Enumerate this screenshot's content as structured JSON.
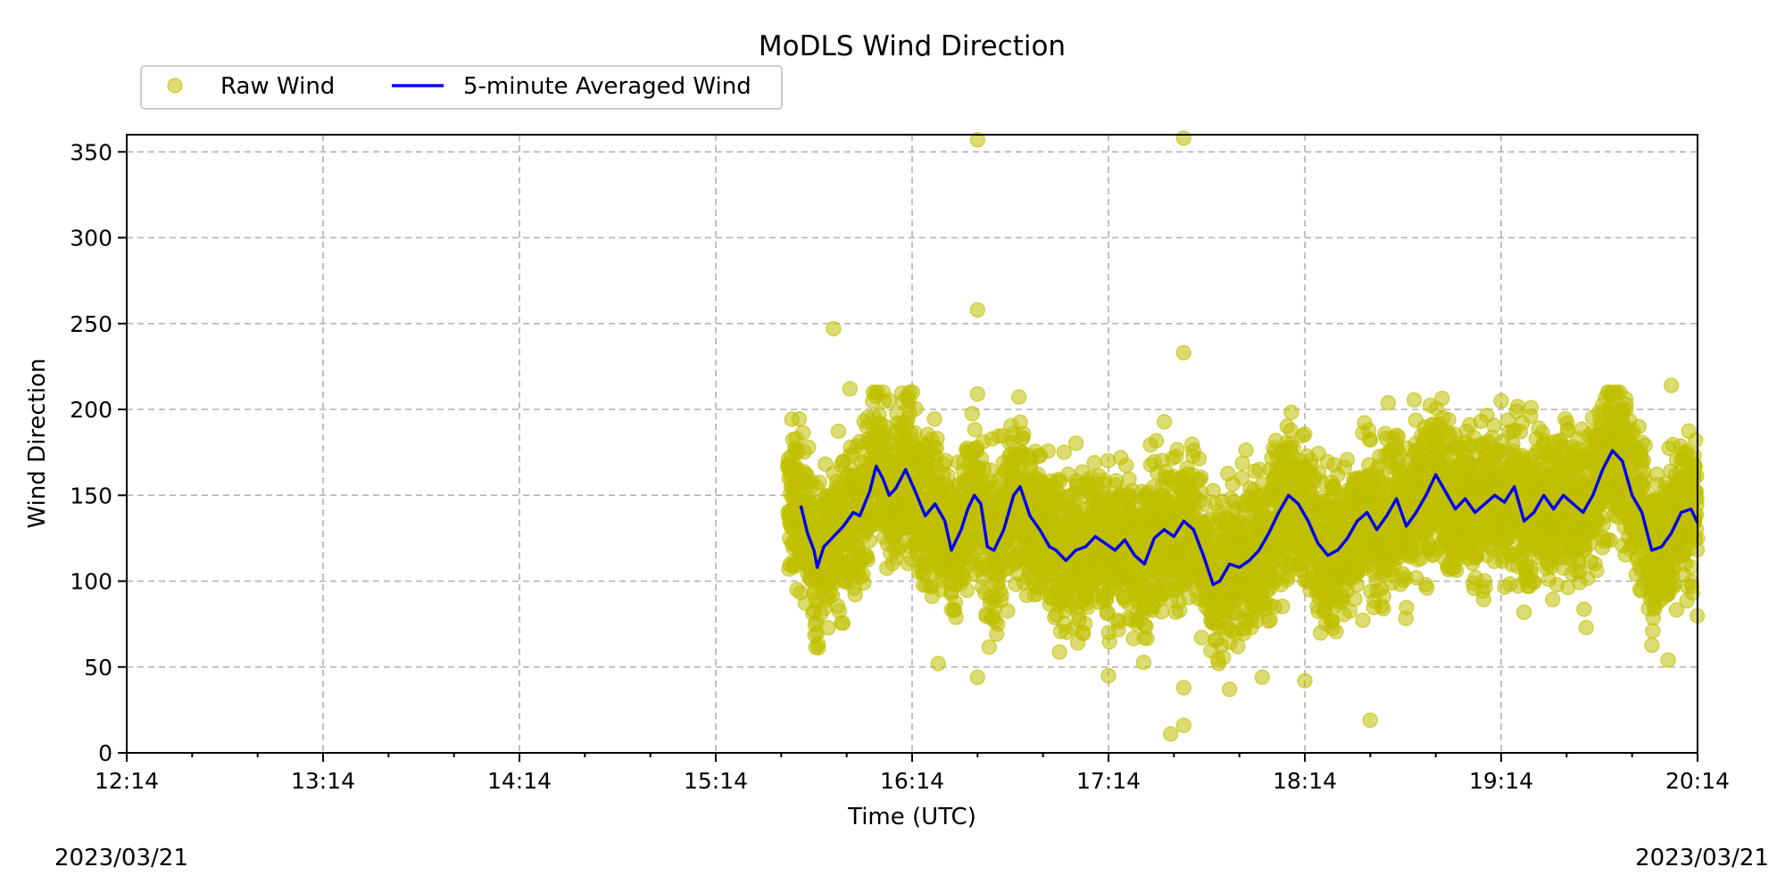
{
  "chart_data": {
    "type": "scatter",
    "title": "MoDLS Wind Direction",
    "xlabel": "Time (UTC)",
    "ylabel": "Wind Direction",
    "x_tick_labels": [
      "12:14",
      "13:14",
      "14:14",
      "15:14",
      "16:14",
      "17:14",
      "18:14",
      "19:14",
      "20:14"
    ],
    "y_ticks": [
      0,
      50,
      100,
      150,
      200,
      250,
      300,
      350
    ],
    "xlim": [
      "12:14",
      "20:14"
    ],
    "ylim": [
      0,
      360
    ],
    "grid": true,
    "legend_placement": "upper-left, above plot",
    "start_date": "2023/03/21",
    "end_date": "2023/03/21",
    "series": [
      {
        "name": "Raw Wind",
        "kind": "scatter",
        "color": "#bfbf00",
        "time_range": [
          "15:36",
          "20:14"
        ],
        "typical_range": [
          60,
          200
        ],
        "outliers": [
          {
            "time": "15:50",
            "value": 247
          },
          {
            "time": "15:55",
            "value": 212
          },
          {
            "time": "16:22",
            "value": 52
          },
          {
            "time": "16:34",
            "value": 357
          },
          {
            "time": "16:34",
            "value": 258
          },
          {
            "time": "16:34",
            "value": 209
          },
          {
            "time": "16:34",
            "value": 44
          },
          {
            "time": "17:14",
            "value": 45
          },
          {
            "time": "17:33",
            "value": 11
          },
          {
            "time": "17:37",
            "value": 16
          },
          {
            "time": "17:37",
            "value": 38
          },
          {
            "time": "17:37",
            "value": 233
          },
          {
            "time": "17:37",
            "value": 358
          },
          {
            "time": "17:51",
            "value": 37
          },
          {
            "time": "18:01",
            "value": 44
          },
          {
            "time": "18:14",
            "value": 42
          },
          {
            "time": "18:34",
            "value": 19
          },
          {
            "time": "19:14",
            "value": 205
          },
          {
            "time": "19:40",
            "value": 73
          },
          {
            "time": "20:05",
            "value": 54
          },
          {
            "time": "20:06",
            "value": 214
          }
        ]
      },
      {
        "name": "5-minute Averaged Wind",
        "kind": "line",
        "color": "#0000ee",
        "points": [
          [
            "15:40",
            144
          ],
          [
            "15:42",
            128
          ],
          [
            "15:44",
            118
          ],
          [
            "15:45",
            108
          ],
          [
            "15:47",
            120
          ],
          [
            "15:50",
            126
          ],
          [
            "15:53",
            132
          ],
          [
            "15:56",
            140
          ],
          [
            "15:58",
            138
          ],
          [
            "16:01",
            152
          ],
          [
            "16:03",
            167
          ],
          [
            "16:05",
            160
          ],
          [
            "16:07",
            150
          ],
          [
            "16:09",
            154
          ],
          [
            "16:12",
            165
          ],
          [
            "16:15",
            152
          ],
          [
            "16:18",
            138
          ],
          [
            "16:21",
            145
          ],
          [
            "16:24",
            135
          ],
          [
            "16:26",
            118
          ],
          [
            "16:29",
            130
          ],
          [
            "16:31",
            142
          ],
          [
            "16:33",
            150
          ],
          [
            "16:35",
            145
          ],
          [
            "16:37",
            120
          ],
          [
            "16:39",
            118
          ],
          [
            "16:42",
            130
          ],
          [
            "16:45",
            150
          ],
          [
            "16:47",
            155
          ],
          [
            "16:50",
            138
          ],
          [
            "16:53",
            130
          ],
          [
            "16:56",
            120
          ],
          [
            "16:58",
            118
          ],
          [
            "17:01",
            112
          ],
          [
            "17:04",
            118
          ],
          [
            "17:07",
            120
          ],
          [
            "17:10",
            126
          ],
          [
            "17:13",
            122
          ],
          [
            "17:16",
            118
          ],
          [
            "17:19",
            124
          ],
          [
            "17:22",
            115
          ],
          [
            "17:25",
            110
          ],
          [
            "17:28",
            125
          ],
          [
            "17:31",
            130
          ],
          [
            "17:34",
            126
          ],
          [
            "17:37",
            135
          ],
          [
            "17:40",
            130
          ],
          [
            "17:43",
            115
          ],
          [
            "17:46",
            98
          ],
          [
            "17:48",
            100
          ],
          [
            "17:51",
            110
          ],
          [
            "17:54",
            108
          ],
          [
            "17:57",
            112
          ],
          [
            "18:00",
            118
          ],
          [
            "18:03",
            128
          ],
          [
            "18:06",
            140
          ],
          [
            "18:09",
            150
          ],
          [
            "18:12",
            145
          ],
          [
            "18:15",
            135
          ],
          [
            "18:18",
            122
          ],
          [
            "18:21",
            115
          ],
          [
            "18:24",
            118
          ],
          [
            "18:27",
            125
          ],
          [
            "18:30",
            135
          ],
          [
            "18:33",
            140
          ],
          [
            "18:36",
            130
          ],
          [
            "18:39",
            138
          ],
          [
            "18:42",
            148
          ],
          [
            "18:45",
            132
          ],
          [
            "18:48",
            140
          ],
          [
            "18:51",
            150
          ],
          [
            "18:54",
            162
          ],
          [
            "18:57",
            152
          ],
          [
            "19:00",
            142
          ],
          [
            "19:03",
            148
          ],
          [
            "19:06",
            140
          ],
          [
            "19:09",
            145
          ],
          [
            "19:12",
            150
          ],
          [
            "19:15",
            146
          ],
          [
            "19:18",
            155
          ],
          [
            "19:21",
            135
          ],
          [
            "19:24",
            140
          ],
          [
            "19:27",
            150
          ],
          [
            "19:30",
            142
          ],
          [
            "19:33",
            150
          ],
          [
            "19:36",
            145
          ],
          [
            "19:39",
            140
          ],
          [
            "19:42",
            150
          ],
          [
            "19:45",
            165
          ],
          [
            "19:48",
            176
          ],
          [
            "19:51",
            170
          ],
          [
            "19:54",
            150
          ],
          [
            "19:57",
            140
          ],
          [
            "20:00",
            118
          ],
          [
            "20:03",
            120
          ],
          [
            "20:06",
            128
          ],
          [
            "20:09",
            140
          ],
          [
            "20:12",
            142
          ],
          [
            "20:14",
            134
          ]
        ]
      }
    ]
  }
}
